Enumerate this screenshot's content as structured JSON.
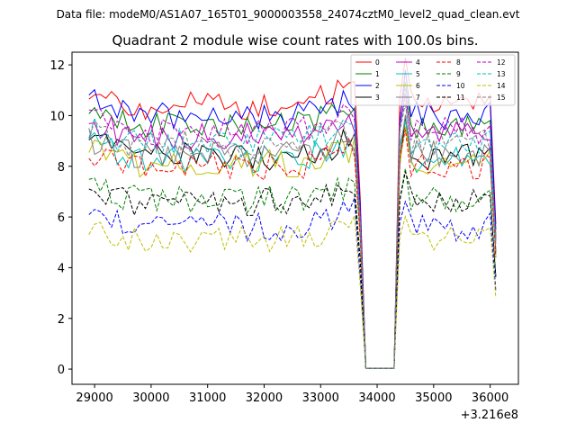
{
  "chart_data": {
    "type": "line",
    "suptitle": "Data file: modeM0/AS1A07_165T01_9000003558_24074cztM0_level2_quad_clean.evt",
    "title": "Quadrant 2 module wise count rates with 100.0s bins.",
    "xlabel": "",
    "ylabel": "",
    "x_offset_label": "+3.216e8",
    "xlim": [
      28600,
      36500
    ],
    "ylim": [
      -0.6,
      12.5
    ],
    "xticks": [
      29000,
      30000,
      31000,
      32000,
      33000,
      34000,
      35000,
      36000
    ],
    "yticks": [
      0,
      2,
      4,
      6,
      8,
      10,
      12
    ],
    "x": [
      28900,
      29000,
      29100,
      29200,
      29300,
      29400,
      29500,
      29600,
      29700,
      29800,
      29900,
      30000,
      30100,
      30200,
      30300,
      30400,
      30500,
      30600,
      30700,
      30800,
      30900,
      31000,
      31100,
      31200,
      31300,
      31400,
      31500,
      31600,
      31700,
      31800,
      31900,
      32000,
      32100,
      32200,
      32300,
      32400,
      32500,
      32600,
      32700,
      32800,
      32900,
      33000,
      33100,
      33200,
      33300,
      33400,
      33500,
      33600,
      33700,
      33800,
      33900,
      34000,
      34100,
      34200,
      34300,
      34400,
      34500,
      34600,
      34700,
      34800,
      34900,
      35000,
      35100,
      35200,
      35300,
      35400,
      35500,
      35600,
      35700,
      35800,
      35900,
      36000,
      36100
    ],
    "legend": {
      "location": "top-right",
      "ncol": 4
    },
    "series": [
      {
        "name": "0",
        "color": "#ff0000",
        "dashed": false,
        "base": 10.4,
        "gap": [
          0.03,
          10.0
        ]
      },
      {
        "name": "1",
        "color": "#008000",
        "dashed": false,
        "base": 9.6,
        "gap": [
          0.03,
          9.3
        ]
      },
      {
        "name": "2",
        "color": "#0000ff",
        "dashed": false,
        "base": 10.0,
        "gap": [
          0.03,
          9.8
        ]
      },
      {
        "name": "3",
        "color": "#000000",
        "dashed": false,
        "base": 8.4,
        "gap": [
          0.03,
          8.2
        ]
      },
      {
        "name": "4",
        "color": "#bf00bf",
        "dashed": false,
        "base": 9.2,
        "gap": [
          0.03,
          9.0
        ]
      },
      {
        "name": "5",
        "color": "#00bfbf",
        "dashed": false,
        "base": 8.3,
        "gap": [
          0.03,
          8.3
        ]
      },
      {
        "name": "6",
        "color": "#bfbf00",
        "dashed": false,
        "base": 8.1,
        "gap": [
          0.03,
          8.1
        ]
      },
      {
        "name": "7",
        "color": "#808080",
        "dashed": false,
        "base": 8.5,
        "gap": [
          0.03,
          8.5
        ]
      },
      {
        "name": "8",
        "color": "#ff0000",
        "dashed": true,
        "base": 8.0,
        "gap": [
          0.03,
          8.2
        ]
      },
      {
        "name": "9",
        "color": "#008000",
        "dashed": true,
        "base": 6.7,
        "gap": [
          0.03,
          6.8
        ]
      },
      {
        "name": "10",
        "color": "#0000ff",
        "dashed": true,
        "base": 5.6,
        "gap": [
          0.03,
          5.7
        ]
      },
      {
        "name": "11",
        "color": "#000000",
        "dashed": true,
        "base": 6.6,
        "gap": [
          0.03,
          6.8
        ]
      },
      {
        "name": "12",
        "color": "#bf00bf",
        "dashed": true,
        "base": 9.4,
        "gap": [
          0.03,
          9.2
        ]
      },
      {
        "name": "13",
        "color": "#00bfbf",
        "dashed": true,
        "base": 9.0,
        "gap": [
          0.03,
          9.0
        ]
      },
      {
        "name": "14",
        "color": "#bfbf00",
        "dashed": true,
        "base": 5.1,
        "gap": [
          0.03,
          5.1
        ]
      },
      {
        "name": "15",
        "color": "#808080",
        "dashed": true,
        "base": 8.9,
        "gap": [
          0.03,
          8.9
        ]
      }
    ]
  }
}
